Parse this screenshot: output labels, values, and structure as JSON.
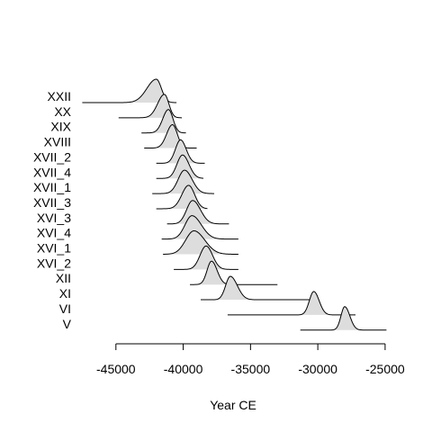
{
  "chart_data": {
    "type": "ridgeline",
    "xlabel": "Year CE",
    "x_ticks": [
      -45000,
      -40000,
      -35000,
      -30000,
      -25000
    ],
    "x_tick_labels": [
      "-45000",
      "-40000",
      "-35000",
      "-30000",
      "-25000"
    ],
    "xlim": [
      -47200,
      -24800
    ],
    "fill_color": "#dddddd",
    "line_color": "#000000",
    "series": [
      {
        "name": "XXII",
        "mode": -42000,
        "left_sd": 700,
        "right_sd": 380,
        "x_min": -47500,
        "x_max": -40500
      },
      {
        "name": "XX",
        "mode": -41400,
        "left_sd": 500,
        "right_sd": 330,
        "x_min": -44800,
        "x_max": -40100
      },
      {
        "name": "XIX",
        "mode": -41100,
        "left_sd": 420,
        "right_sd": 340,
        "x_min": -43100,
        "x_max": -39800
      },
      {
        "name": "XVIII",
        "mode": -40800,
        "left_sd": 430,
        "right_sd": 360,
        "x_min": -42900,
        "x_max": -39000
      },
      {
        "name": "XVII_2",
        "mode": -40200,
        "left_sd": 380,
        "right_sd": 420,
        "x_min": -42000,
        "x_max": -38400
      },
      {
        "name": "XVII_4",
        "mode": -40050,
        "left_sd": 420,
        "right_sd": 480,
        "x_min": -42000,
        "x_max": -38500
      },
      {
        "name": "XVII_1",
        "mode": -39900,
        "left_sd": 480,
        "right_sd": 560,
        "x_min": -42300,
        "x_max": -37700
      },
      {
        "name": "XVII_3",
        "mode": -39600,
        "left_sd": 500,
        "right_sd": 450,
        "x_min": -42000,
        "x_max": -38200
      },
      {
        "name": "XVI_3",
        "mode": -39300,
        "left_sd": 450,
        "right_sd": 580,
        "x_min": -41200,
        "x_max": -36600
      },
      {
        "name": "XVI_4",
        "mode": -39350,
        "left_sd": 520,
        "right_sd": 700,
        "x_min": -41600,
        "x_max": -35900
      },
      {
        "name": "XVI_1",
        "mode": -39200,
        "left_sd": 620,
        "right_sd": 800,
        "x_min": -41500,
        "x_max": -35900
      },
      {
        "name": "XVI_2",
        "mode": -38300,
        "left_sd": 450,
        "right_sd": 480,
        "x_min": -40700,
        "x_max": -35900
      },
      {
        "name": "XII",
        "mode": -37900,
        "left_sd": 330,
        "right_sd": 420,
        "x_min": -39500,
        "x_max": -33000
      },
      {
        "name": "XI",
        "mode": -36500,
        "left_sd": 350,
        "right_sd": 520,
        "x_min": -38700,
        "x_max": -30200
      },
      {
        "name": "VI",
        "mode": -30300,
        "left_sd": 330,
        "right_sd": 400,
        "x_min": -36700,
        "x_max": -27200
      },
      {
        "name": "V",
        "mode": -28000,
        "left_sd": 280,
        "right_sd": 380,
        "x_min": -31300,
        "x_max": -24900
      }
    ]
  }
}
